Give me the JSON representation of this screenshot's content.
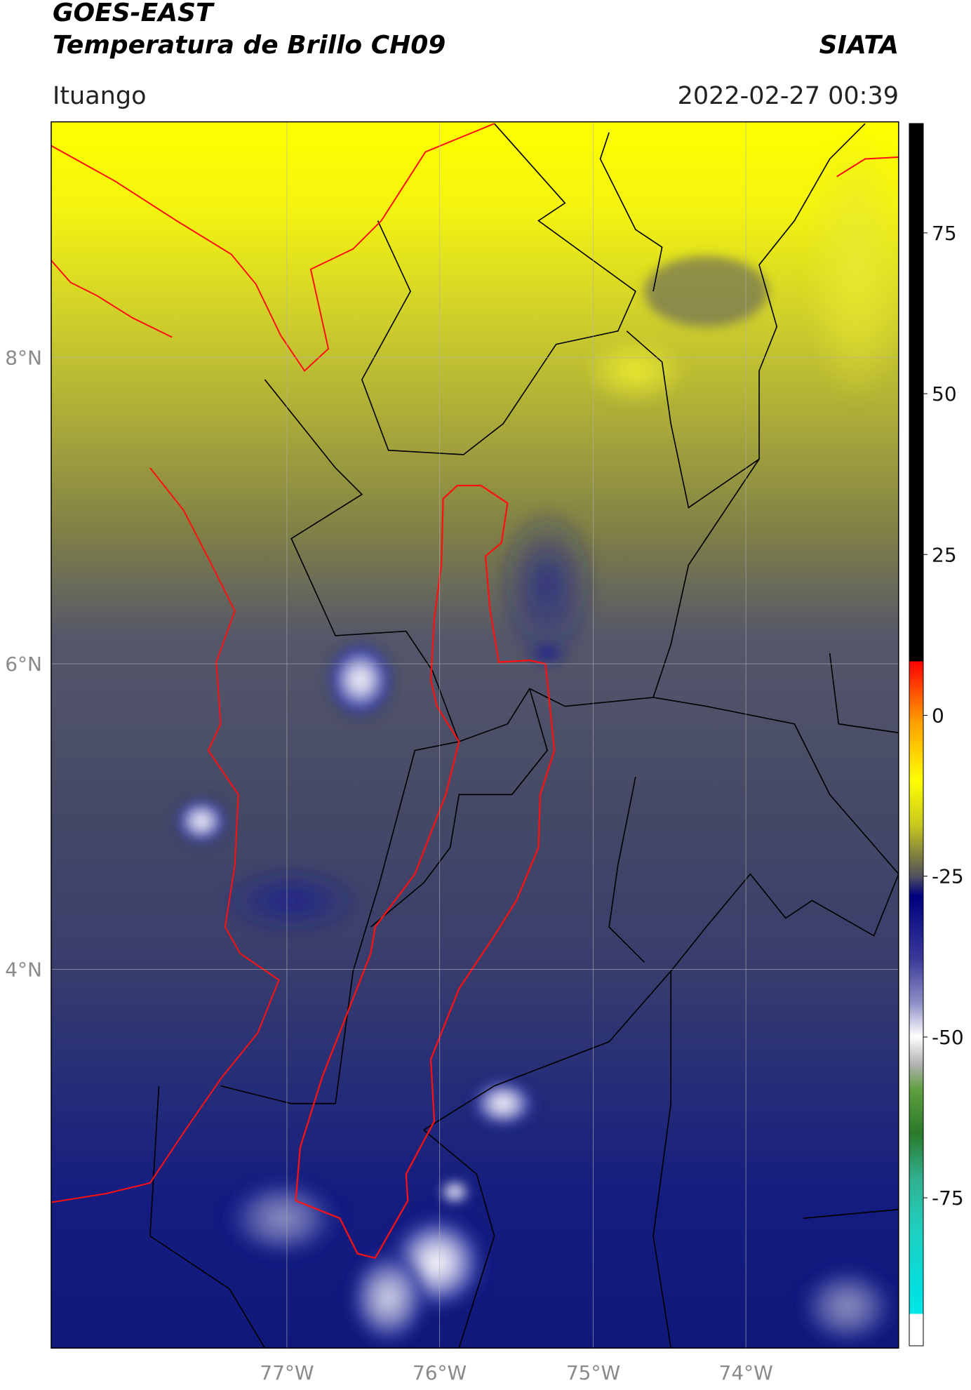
{
  "header": {
    "title": "GOES-EAST",
    "subtitle": "Temperatura de Brillo CH09",
    "source": "SIATA",
    "location": "Ituango",
    "datetime": "2022-02-27 00:39"
  },
  "map": {
    "lat_labels": [
      "8°N",
      "6°N",
      "4°N"
    ],
    "lon_labels": [
      "77°W",
      "76°W",
      "75°W",
      "74°W"
    ]
  },
  "colorbar": {
    "range": [
      -98,
      92
    ],
    "ticks": [
      -75,
      -50,
      -25,
      0,
      25,
      50,
      75
    ]
  }
}
